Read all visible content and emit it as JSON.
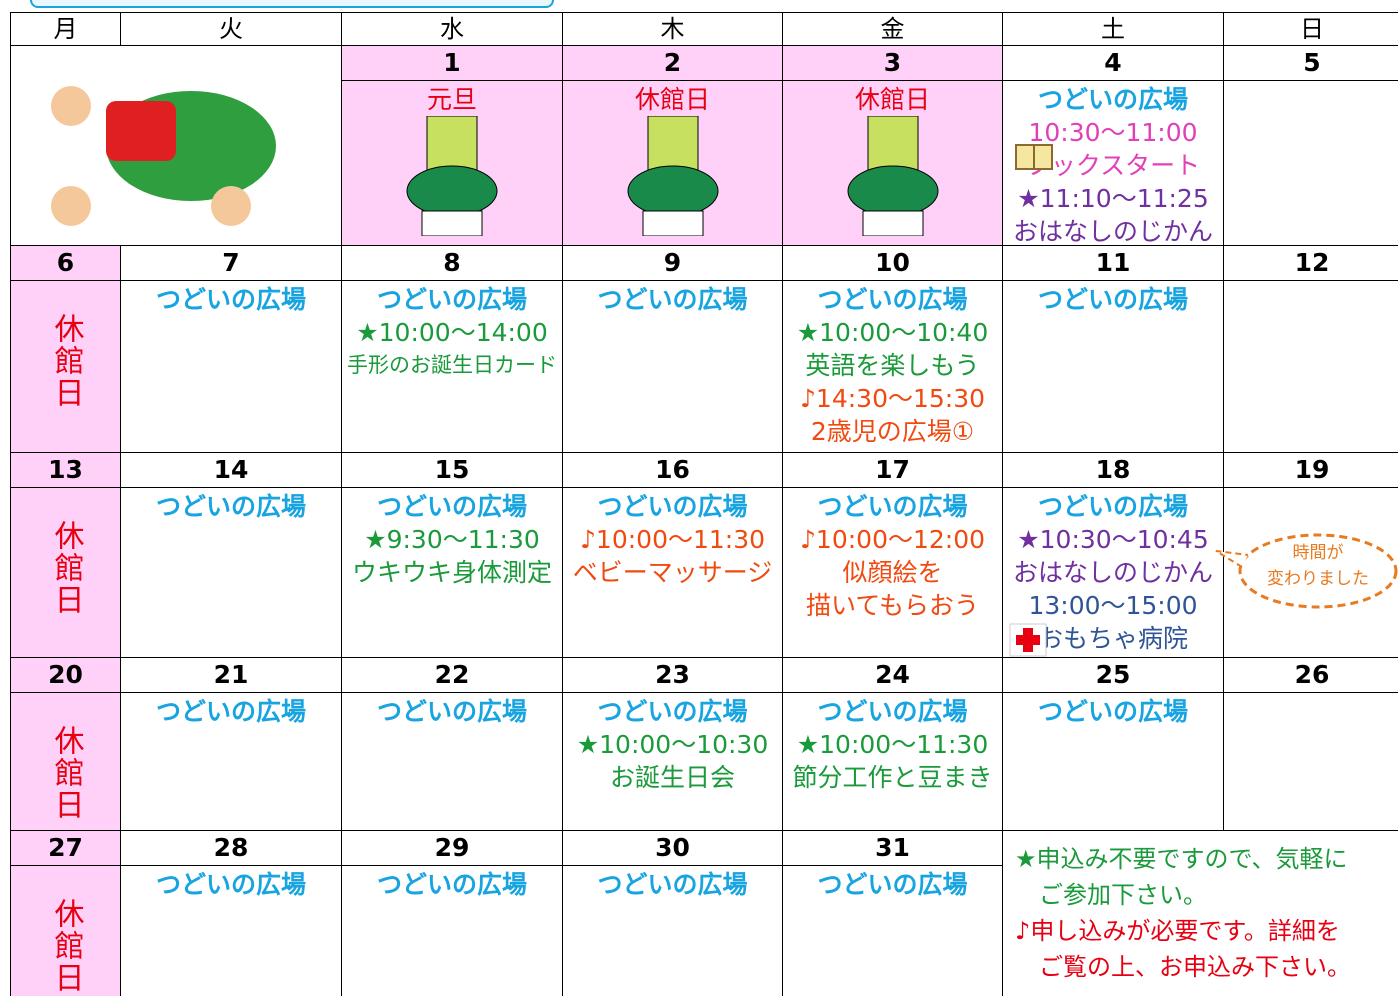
{
  "weekdays": [
    "月",
    "火",
    "水",
    "木",
    "金",
    "土",
    "日"
  ],
  "weeks": [
    {
      "days": [
        {
          "date": "1",
          "pink": true,
          "lines": [
            {
              "text": "元旦",
              "color": "#e60012"
            }
          ]
        },
        {
          "date": "2",
          "pink": true,
          "lines": [
            {
              "text": "休館日",
              "color": "#e60012"
            }
          ]
        },
        {
          "date": "3",
          "pink": true,
          "lines": [
            {
              "text": "休館日",
              "color": "#e60012"
            }
          ]
        },
        {
          "date": "4",
          "lines": [
            {
              "text": "つどいの広場",
              "color": "#18a4e0",
              "bold": true
            },
            {
              "text": "10:30～11:00",
              "color": "#e040b8"
            },
            {
              "text": "ブックスタート",
              "color": "#e040b8"
            },
            {
              "text": "★11:10～11:25",
              "color": "#7030a0"
            },
            {
              "text": "おはなしのじかん",
              "color": "#7030a0"
            }
          ]
        },
        {
          "date": "5",
          "lines": []
        }
      ]
    },
    {
      "days": [
        {
          "date": "6",
          "pink": true,
          "lines": [
            {
              "text": "休館日",
              "color": "#e60012",
              "vertical": true
            }
          ]
        },
        {
          "date": "7",
          "lines": [
            {
              "text": "つどいの広場",
              "color": "#18a4e0",
              "bold": true
            }
          ]
        },
        {
          "date": "8",
          "lines": [
            {
              "text": "つどいの広場",
              "color": "#18a4e0",
              "bold": true
            },
            {
              "text": "★10:00～14:00",
              "color": "#1a9a3a"
            },
            {
              "text": "手形のお誕生日カード",
              "color": "#1a9a3a"
            }
          ]
        },
        {
          "date": "9",
          "lines": [
            {
              "text": "つどいの広場",
              "color": "#18a4e0",
              "bold": true
            }
          ]
        },
        {
          "date": "10",
          "lines": [
            {
              "text": "つどいの広場",
              "color": "#18a4e0",
              "bold": true
            },
            {
              "text": "★10:00～10:40",
              "color": "#1a9a3a"
            },
            {
              "text": "英語を楽しもう",
              "color": "#1a9a3a"
            },
            {
              "text": "♪14:30～15:30",
              "color": "#f04a10"
            },
            {
              "text": "2歳児の広場①",
              "color": "#f04a10"
            }
          ]
        },
        {
          "date": "11",
          "lines": [
            {
              "text": "つどいの広場",
              "color": "#18a4e0",
              "bold": true
            }
          ]
        },
        {
          "date": "12",
          "lines": []
        }
      ]
    },
    {
      "days": [
        {
          "date": "13",
          "pink": true,
          "lines": [
            {
              "text": "休館日",
              "color": "#e60012",
              "vertical": true
            }
          ]
        },
        {
          "date": "14",
          "lines": [
            {
              "text": "つどいの広場",
              "color": "#18a4e0",
              "bold": true
            }
          ]
        },
        {
          "date": "15",
          "lines": [
            {
              "text": "つどいの広場",
              "color": "#18a4e0",
              "bold": true
            },
            {
              "text": "★9:30～11:30",
              "color": "#1a9a3a"
            },
            {
              "text": "ウキウキ身体測定",
              "color": "#1a9a3a"
            }
          ]
        },
        {
          "date": "16",
          "lines": [
            {
              "text": "つどいの広場",
              "color": "#18a4e0",
              "bold": true
            },
            {
              "text": "♪10:00～11:30",
              "color": "#f04a10"
            },
            {
              "text": "ベビーマッサージ",
              "color": "#f04a10"
            }
          ]
        },
        {
          "date": "17",
          "lines": [
            {
              "text": "つどいの広場",
              "color": "#18a4e0",
              "bold": true
            },
            {
              "text": "♪10:00～12:00",
              "color": "#f04a10"
            },
            {
              "text": "似顔絵を",
              "color": "#f04a10"
            },
            {
              "text": "描いてもらおう",
              "color": "#f04a10"
            }
          ]
        },
        {
          "date": "18",
          "lines": [
            {
              "text": "つどいの広場",
              "color": "#18a4e0",
              "bold": true
            },
            {
              "text": "★10:30～10:45",
              "color": "#7030a0"
            },
            {
              "text": "おはなしのじかん",
              "color": "#7030a0"
            },
            {
              "text": "13:00～15:00",
              "color": "#2f5597"
            },
            {
              "text": "おもちゃ病院",
              "color": "#2f5597"
            }
          ]
        },
        {
          "date": "19",
          "lines": []
        }
      ]
    },
    {
      "days": [
        {
          "date": "20",
          "pink": true,
          "lines": [
            {
              "text": "休館日",
              "color": "#e60012",
              "vertical": true
            }
          ]
        },
        {
          "date": "21",
          "lines": [
            {
              "text": "つどいの広場",
              "color": "#18a4e0",
              "bold": true
            }
          ]
        },
        {
          "date": "22",
          "lines": [
            {
              "text": "つどいの広場",
              "color": "#18a4e0",
              "bold": true
            }
          ]
        },
        {
          "date": "23",
          "lines": [
            {
              "text": "つどいの広場",
              "color": "#18a4e0",
              "bold": true
            },
            {
              "text": "★10:00～10:30",
              "color": "#1a9a3a"
            },
            {
              "text": "お誕生日会",
              "color": "#1a9a3a"
            }
          ]
        },
        {
          "date": "24",
          "lines": [
            {
              "text": "つどいの広場",
              "color": "#18a4e0",
              "bold": true
            },
            {
              "text": "★10:00～11:30",
              "color": "#1a9a3a"
            },
            {
              "text": "節分工作と豆まき",
              "color": "#1a9a3a"
            }
          ]
        },
        {
          "date": "25",
          "lines": [
            {
              "text": "つどいの広場",
              "color": "#18a4e0",
              "bold": true
            }
          ]
        },
        {
          "date": "26",
          "lines": []
        }
      ]
    },
    {
      "days": [
        {
          "date": "27",
          "pink": true,
          "lines": [
            {
              "text": "休館日",
              "color": "#e60012",
              "vertical": true
            }
          ]
        },
        {
          "date": "28",
          "lines": [
            {
              "text": "つどいの広場",
              "color": "#18a4e0",
              "bold": true
            }
          ]
        },
        {
          "date": "29",
          "lines": [
            {
              "text": "つどいの広場",
              "color": "#18a4e0",
              "bold": true
            }
          ]
        },
        {
          "date": "30",
          "lines": [
            {
              "text": "つどいの広場",
              "color": "#18a4e0",
              "bold": true
            }
          ]
        },
        {
          "date": "31",
          "lines": [
            {
              "text": "つどいの広場",
              "color": "#18a4e0",
              "bold": true
            }
          ]
        }
      ]
    }
  ],
  "note": {
    "lines": [
      {
        "text": "★申込み不要ですので、気軽に",
        "color": "#1a9a3a"
      },
      {
        "text": "ご参加下さい。",
        "color": "#1a9a3a"
      },
      {
        "text": "♪申し込みが必要です。詳細を",
        "color": "#e60012"
      },
      {
        "text": "ご覧の上、お申込み下さい。",
        "color": "#e60012"
      }
    ]
  },
  "balloon": {
    "lines": [
      "時間が",
      "変わりました"
    ]
  }
}
